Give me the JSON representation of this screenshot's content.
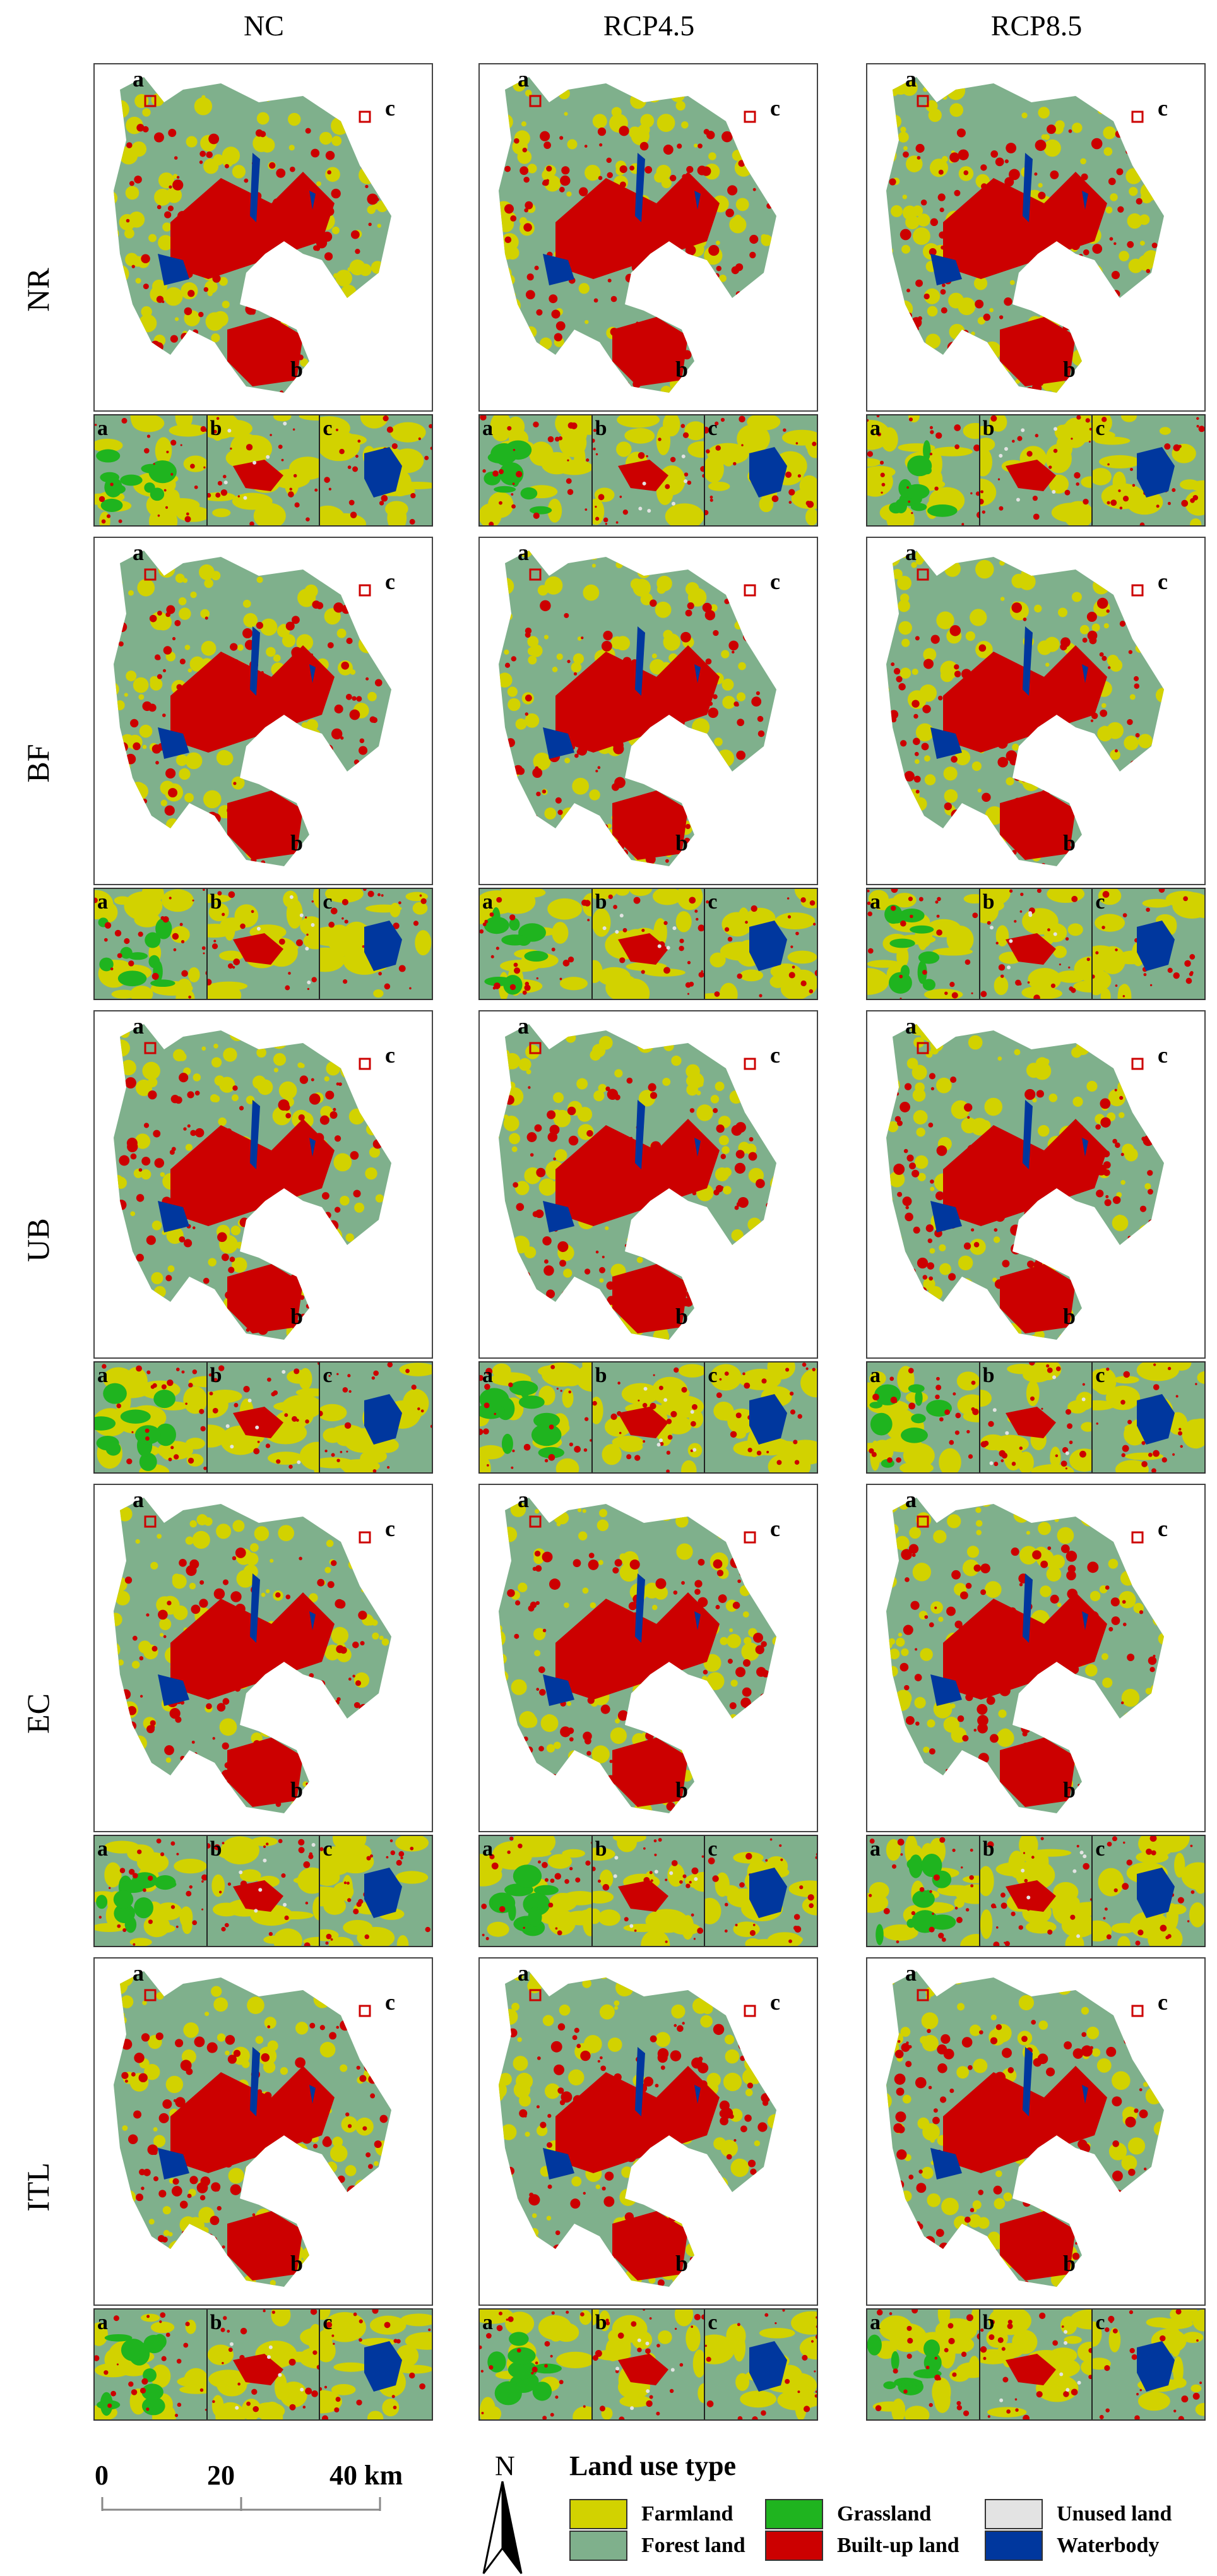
{
  "columns": [
    "NC",
    "RCP4.5",
    "RCP8.5"
  ],
  "rows": [
    "NR",
    "BF",
    "UB",
    "EC",
    "ITL"
  ],
  "site_labels": {
    "a": "a",
    "b": "b",
    "c": "c"
  },
  "scale_bar": {
    "ticks": [
      "0",
      "20",
      "40 km"
    ]
  },
  "north_arrow": {
    "label": "N"
  },
  "legend": {
    "title": "Land use type",
    "items": [
      {
        "label": "Farmland",
        "color": "#d2d200"
      },
      {
        "label": "Grassland",
        "color": "#1fb41f"
      },
      {
        "label": "Unused land",
        "color": "#e3e3e3"
      },
      {
        "label": "Forest land",
        "color": "#7fb08c"
      },
      {
        "label": "Built-up land",
        "color": "#cc0000"
      },
      {
        "label": "Waterbody",
        "color": "#00379e"
      }
    ]
  }
}
